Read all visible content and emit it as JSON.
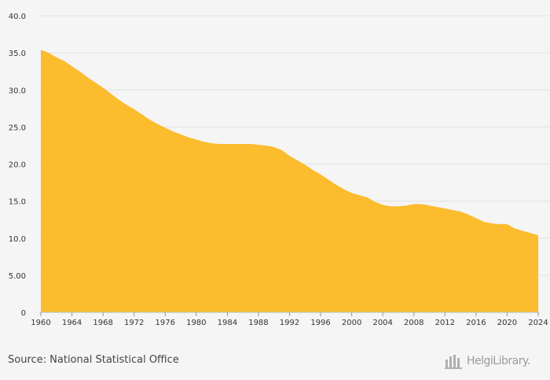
{
  "chart_data": {
    "type": "area",
    "title": "",
    "xlabel": "",
    "ylabel": "",
    "xlim": [
      1960,
      2024
    ],
    "ylim": [
      0,
      40
    ],
    "grid": true,
    "legend": "none",
    "color": "#fbbc2e",
    "x_ticks": [
      1960,
      1964,
      1968,
      1972,
      1976,
      1980,
      1984,
      1988,
      1992,
      1996,
      2000,
      2004,
      2008,
      2012,
      2016,
      2020,
      2024
    ],
    "y_ticks": [
      {
        "value": 0,
        "label": "0"
      },
      {
        "value": 5,
        "label": "5.00"
      },
      {
        "value": 10,
        "label": "10.0"
      },
      {
        "value": 15,
        "label": "15.0"
      },
      {
        "value": 20,
        "label": "20.0"
      },
      {
        "value": 25,
        "label": "25.0"
      },
      {
        "value": 30,
        "label": "30.0"
      },
      {
        "value": 35,
        "label": "35.0"
      },
      {
        "value": 40,
        "label": "40.0"
      }
    ],
    "x": [
      1960,
      1961,
      1962,
      1963,
      1964,
      1965,
      1966,
      1967,
      1968,
      1969,
      1970,
      1971,
      1972,
      1973,
      1974,
      1975,
      1976,
      1977,
      1978,
      1979,
      1980,
      1981,
      1982,
      1983,
      1984,
      1985,
      1986,
      1987,
      1988,
      1989,
      1990,
      1991,
      1992,
      1993,
      1994,
      1995,
      1996,
      1997,
      1998,
      1999,
      2000,
      2001,
      2002,
      2003,
      2004,
      2005,
      2006,
      2007,
      2008,
      2009,
      2010,
      2011,
      2012,
      2013,
      2014,
      2015,
      2016,
      2017,
      2018,
      2019,
      2020,
      2021,
      2022,
      2023,
      2024
    ],
    "values": [
      35.4,
      35.0,
      34.4,
      33.9,
      33.2,
      32.5,
      31.7,
      31.0,
      30.3,
      29.5,
      28.7,
      28.0,
      27.4,
      26.7,
      26.0,
      25.4,
      24.9,
      24.4,
      24.0,
      23.6,
      23.3,
      23.0,
      22.8,
      22.7,
      22.7,
      22.7,
      22.7,
      22.7,
      22.6,
      22.5,
      22.3,
      21.9,
      21.1,
      20.5,
      19.9,
      19.2,
      18.6,
      17.9,
      17.2,
      16.6,
      16.1,
      15.8,
      15.5,
      14.9,
      14.5,
      14.3,
      14.3,
      14.4,
      14.6,
      14.6,
      14.4,
      14.2,
      14.0,
      13.8,
      13.6,
      13.2,
      12.7,
      12.2,
      12.0,
      11.9,
      11.9,
      11.3,
      11.0,
      10.7,
      10.4
    ]
  },
  "footer": {
    "source": "Source: National Statistical Office",
    "brand": "HelgiLibrary."
  }
}
